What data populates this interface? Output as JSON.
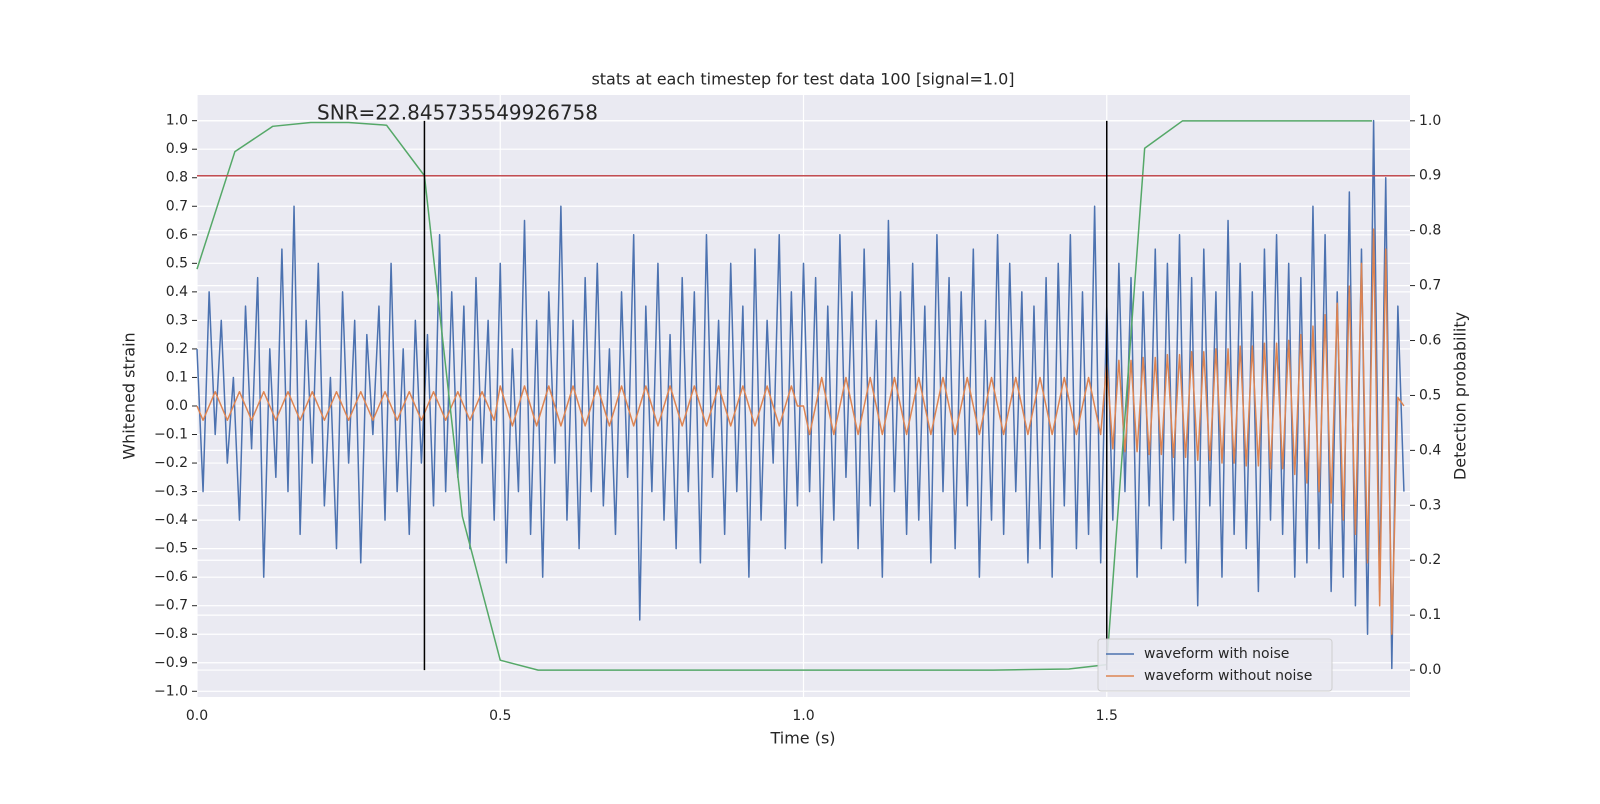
{
  "chart_data": {
    "type": "line",
    "title": "stats at each timestep for test data 100 [signal=1.0]",
    "annotation": "SNR=22.845735549926758",
    "xlabel": "Time (s)",
    "ylabel": "Whitened strain",
    "y2label": "Detection probability",
    "grid": true,
    "legend": "lower right",
    "xlim": [
      0,
      2.0
    ],
    "xticks": [
      {
        "value": 0,
        "label": "0.0"
      },
      0.5,
      {
        "value": 1,
        "label": "1.0"
      },
      1.5
    ],
    "ylim": [
      -1.02,
      1.09
    ],
    "yticks": [
      {
        "value": -1,
        "label": "−1.0"
      },
      {
        "value": -0.9,
        "label": "−0.9"
      },
      {
        "value": -0.8,
        "label": "−0.8"
      },
      {
        "value": -0.7,
        "label": "−0.7"
      },
      {
        "value": -0.6,
        "label": "−0.6"
      },
      {
        "value": -0.5,
        "label": "−0.5"
      },
      {
        "value": -0.4,
        "label": "−0.4"
      },
      {
        "value": -0.3,
        "label": "−0.3"
      },
      {
        "value": -0.2,
        "label": "−0.2"
      },
      {
        "value": -0.1,
        "label": "−0.1"
      },
      {
        "value": 0,
        "label": "0.0"
      },
      0.1,
      0.2,
      0.3,
      0.4,
      0.5,
      0.6,
      0.7,
      0.8,
      0.9,
      {
        "value": 1,
        "label": "1.0"
      }
    ],
    "y2lim": [
      -0.049,
      1.047
    ],
    "y2ticks": [
      {
        "value": 0,
        "label": "0.0"
      },
      0.1,
      0.2,
      0.3,
      0.4,
      0.5,
      0.6,
      0.7,
      0.8,
      0.9,
      {
        "value": 1,
        "label": "1.0"
      }
    ],
    "x": [
      0,
      0.01,
      0.02,
      0.03,
      0.04,
      0.05,
      0.06,
      0.07,
      0.08,
      0.09,
      0.1,
      0.11,
      0.12,
      0.13,
      0.14,
      0.15,
      0.16,
      0.17,
      0.18,
      0.19,
      0.2,
      0.21,
      0.22,
      0.23,
      0.24,
      0.25,
      0.26,
      0.27,
      0.28,
      0.29,
      0.3,
      0.31,
      0.32,
      0.33,
      0.34,
      0.35,
      0.36,
      0.37,
      0.38,
      0.39,
      0.4,
      0.41,
      0.42,
      0.43,
      0.44,
      0.45,
      0.46,
      0.47,
      0.48,
      0.49,
      0.5,
      0.51,
      0.52,
      0.53,
      0.54,
      0.55,
      0.56,
      0.57,
      0.58,
      0.59,
      0.6,
      0.61,
      0.62,
      0.63,
      0.64,
      0.65,
      0.66,
      0.67,
      0.68,
      0.69,
      0.7,
      0.71,
      0.72,
      0.73,
      0.74,
      0.75,
      0.76,
      0.77,
      0.78,
      0.79,
      0.8,
      0.81,
      0.82,
      0.83,
      0.84,
      0.85,
      0.86,
      0.87,
      0.88,
      0.89,
      0.9,
      0.91,
      0.92,
      0.93,
      0.94,
      0.95,
      0.96,
      0.97,
      0.98,
      0.99,
      1,
      1.01,
      1.02,
      1.03,
      1.04,
      1.05,
      1.06,
      1.07,
      1.08,
      1.09,
      1.1,
      1.11,
      1.12,
      1.13,
      1.14,
      1.15,
      1.16,
      1.17,
      1.18,
      1.19,
      1.2,
      1.21,
      1.22,
      1.23,
      1.24,
      1.25,
      1.26,
      1.27,
      1.28,
      1.29,
      1.3,
      1.31,
      1.32,
      1.33,
      1.34,
      1.35,
      1.36,
      1.37,
      1.38,
      1.39,
      1.4,
      1.41,
      1.42,
      1.43,
      1.44,
      1.45,
      1.46,
      1.47,
      1.48,
      1.49,
      1.5,
      1.51,
      1.52,
      1.53,
      1.54,
      1.55,
      1.56,
      1.57,
      1.58,
      1.59,
      1.6,
      1.61,
      1.62,
      1.63,
      1.64,
      1.65,
      1.66,
      1.67,
      1.68,
      1.69,
      1.7,
      1.71,
      1.72,
      1.73,
      1.74,
      1.75,
      1.76,
      1.77,
      1.78,
      1.79,
      1.8,
      1.81,
      1.82,
      1.83,
      1.84,
      1.85,
      1.86,
      1.87,
      1.88,
      1.89,
      1.9,
      1.91,
      1.92,
      1.93,
      1.94,
      1.95,
      1.96,
      1.97,
      1.98,
      1.99
    ],
    "series": [
      {
        "name": "waveform with noise",
        "color": "#4c72b0",
        "values": [
          0.2,
          -0.3,
          0.4,
          -0.1,
          0.3,
          -0.2,
          0.1,
          -0.4,
          0.35,
          -0.15,
          0.45,
          -0.6,
          0.2,
          -0.25,
          0.55,
          -0.3,
          0.7,
          -0.45,
          0.3,
          -0.2,
          0.5,
          -0.35,
          0.1,
          -0.5,
          0.4,
          -0.2,
          0.3,
          -0.55,
          0.25,
          -0.1,
          0.35,
          -0.4,
          0.5,
          -0.3,
          0.2,
          -0.45,
          0.3,
          -0.2,
          0.25,
          -0.35,
          0.6,
          -0.3,
          0.4,
          -0.25,
          0.35,
          -0.5,
          0.45,
          -0.2,
          0.3,
          -0.4,
          0.5,
          -0.55,
          0.2,
          -0.3,
          0.65,
          -0.45,
          0.3,
          -0.6,
          0.4,
          -0.2,
          0.7,
          -0.4,
          0.3,
          -0.5,
          0.45,
          -0.3,
          0.5,
          -0.35,
          0.2,
          -0.45,
          0.4,
          -0.25,
          0.6,
          -0.75,
          0.35,
          -0.3,
          0.5,
          -0.4,
          0.25,
          -0.5,
          0.45,
          -0.3,
          0.4,
          -0.55,
          0.6,
          -0.25,
          0.3,
          -0.45,
          0.5,
          -0.3,
          0.35,
          -0.6,
          0.55,
          -0.4,
          0.3,
          -0.2,
          0.6,
          -0.5,
          0.4,
          -0.35,
          0.5,
          -0.3,
          0.45,
          -0.55,
          0.35,
          -0.4,
          0.6,
          -0.25,
          0.4,
          -0.5,
          0.55,
          -0.35,
          0.3,
          -0.6,
          0.65,
          -0.3,
          0.4,
          -0.45,
          0.5,
          -0.4,
          0.35,
          -0.55,
          0.6,
          -0.3,
          0.45,
          -0.5,
          0.4,
          -0.35,
          0.55,
          -0.6,
          0.3,
          -0.4,
          0.6,
          -0.45,
          0.5,
          -0.3,
          0.4,
          -0.55,
          0.35,
          -0.5,
          0.45,
          -0.6,
          0.5,
          -0.35,
          0.6,
          -0.5,
          0.4,
          -0.45,
          0.7,
          -0.55,
          0.35,
          -0.4,
          0.5,
          -0.3,
          0.45,
          -0.6,
          0.4,
          -0.35,
          0.55,
          -0.5,
          0.5,
          -0.4,
          0.6,
          -0.55,
          0.45,
          -0.7,
          0.55,
          -0.35,
          0.4,
          -0.6,
          0.65,
          -0.45,
          0.5,
          -0.5,
          0.4,
          -0.65,
          0.55,
          -0.4,
          0.6,
          -0.45,
          0.5,
          -0.6,
          0.45,
          -0.55,
          0.7,
          -0.5,
          0.6,
          -0.65,
          0.4,
          -0.6,
          0.75,
          -0.7,
          0.55,
          -0.8,
          1.0,
          -0.65,
          0.8,
          -0.92,
          0.35,
          -0.3
        ]
      },
      {
        "name": "waveform without noise",
        "color": "#dd8452",
        "values": [
          0,
          -0.05,
          0,
          0.05,
          0,
          -0.05,
          0,
          0.05,
          0,
          -0.05,
          0,
          0.05,
          0,
          -0.05,
          0,
          0.05,
          0,
          -0.05,
          0,
          0.05,
          0,
          -0.05,
          0,
          0.05,
          0,
          -0.05,
          0,
          0.05,
          0,
          -0.05,
          0,
          0.05,
          0,
          -0.05,
          0,
          0.05,
          0,
          -0.05,
          0,
          0.05,
          0,
          -0.05,
          0,
          0.05,
          0,
          -0.05,
          0,
          0.05,
          0,
          -0.05,
          0.07,
          0,
          -0.07,
          0,
          0.07,
          0,
          -0.07,
          0,
          0.07,
          0,
          -0.07,
          0,
          0.07,
          0,
          -0.07,
          0,
          0.07,
          0,
          -0.07,
          0,
          0.07,
          0,
          -0.07,
          0,
          0.07,
          0,
          -0.07,
          0,
          0.07,
          0,
          -0.07,
          0,
          0.07,
          0,
          -0.07,
          0,
          0.07,
          0,
          -0.07,
          0,
          0.07,
          0,
          -0.07,
          0,
          0.07,
          0,
          -0.07,
          0,
          0.07,
          0,
          0,
          -0.1,
          0,
          0.1,
          0,
          -0.1,
          0,
          0.1,
          0,
          -0.1,
          0,
          0.1,
          0,
          -0.1,
          0,
          0.1,
          0,
          -0.1,
          0,
          0.1,
          0,
          -0.1,
          0,
          0.1,
          0,
          -0.1,
          0,
          0.1,
          0,
          -0.1,
          0,
          0.1,
          0,
          -0.1,
          0,
          0.1,
          0,
          -0.1,
          0,
          0.1,
          0,
          -0.1,
          0,
          0.1,
          0,
          -0.1,
          0,
          0.1,
          0,
          -0.1,
          0.15,
          -0.15,
          0.16,
          -0.16,
          0.16,
          -0.16,
          0.17,
          -0.17,
          0.17,
          -0.17,
          0.18,
          -0.18,
          0.18,
          -0.18,
          0.19,
          -0.19,
          0.19,
          -0.19,
          0.2,
          -0.2,
          0.2,
          -0.2,
          0.21,
          -0.21,
          0.21,
          -0.21,
          0.22,
          -0.22,
          0.22,
          -0.22,
          0.23,
          -0.24,
          0.25,
          -0.27,
          0.28,
          -0.3,
          0.32,
          -0.34,
          0.36,
          -0.4,
          0.42,
          -0.45,
          0.5,
          -0.55,
          0.62,
          -0.7,
          0.55,
          -0.8,
          0.03,
          0
        ]
      },
      {
        "color": "#55a868",
        "axis": "y2",
        "x": [
          0,
          0.0625,
          0.125,
          0.1875,
          0.25,
          0.3125,
          0.375,
          0.4375,
          0.5,
          0.5625,
          0.625,
          0.6875,
          0.75,
          0.8125,
          0.875,
          0.9375,
          1,
          1.0625,
          1.125,
          1.1875,
          1.25,
          1.3125,
          1.375,
          1.4375,
          1.5,
          1.5625,
          1.625,
          1.6875,
          1.75,
          1.8125,
          1.875,
          1.9375
        ],
        "values": [
          0.73,
          0.944,
          0.99,
          0.997,
          0.997,
          0.992,
          0.9,
          0.28,
          0.018,
          0,
          0,
          0,
          0,
          0,
          0,
          0,
          0,
          0,
          0,
          0,
          0,
          0,
          0.001,
          0.002,
          0.01,
          0.95,
          1,
          1,
          1,
          1,
          1,
          1
        ]
      }
    ],
    "threshold": {
      "value": 0.9,
      "axis": "y2",
      "color": "#c44e52"
    },
    "vlines": {
      "x": [
        0.375,
        1.5
      ],
      "color": "#000000"
    }
  }
}
